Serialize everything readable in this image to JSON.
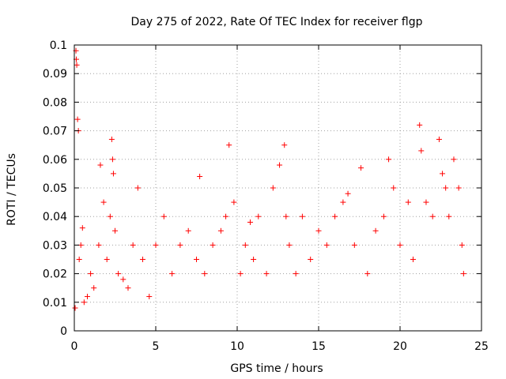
{
  "chart_data": {
    "type": "scatter",
    "title": "Day 275 of 2022, Rate Of TEC Index for receiver flgp",
    "xlabel": "GPS time / hours",
    "ylabel": "ROTI / TECUs",
    "xlim": [
      0,
      25
    ],
    "ylim": [
      0,
      0.1
    ],
    "xticks": [
      0,
      5,
      10,
      15,
      20,
      25
    ],
    "xtick_labels": [
      "0",
      "5",
      "10",
      "15",
      "20",
      "25"
    ],
    "yticks": [
      0,
      0.01,
      0.02,
      0.03,
      0.04,
      0.05,
      0.06,
      0.07,
      0.08,
      0.09,
      0.1
    ],
    "ytick_labels": [
      "0",
      "0.01",
      "0.02",
      "0.03",
      "0.04",
      "0.05",
      "0.06",
      "0.07",
      "0.08",
      "0.09",
      "0.1"
    ],
    "grid": true,
    "marker": "+",
    "color": "#ff0000",
    "series": [
      {
        "name": "ROTI",
        "x": [
          0.05,
          0.1,
          0.12,
          0.15,
          0.2,
          0.25,
          0.3,
          0.4,
          0.5,
          0.6,
          0.8,
          1.0,
          1.2,
          1.5,
          1.6,
          1.8,
          2.0,
          2.2,
          2.3,
          2.35,
          2.4,
          2.5,
          2.7,
          3.0,
          3.3,
          3.6,
          3.9,
          4.2,
          4.6,
          5.0,
          5.5,
          6.0,
          6.5,
          7.0,
          7.5,
          7.7,
          8.0,
          8.5,
          9.0,
          9.3,
          9.5,
          9.8,
          10.2,
          10.5,
          10.8,
          11.0,
          11.3,
          11.8,
          12.2,
          12.6,
          12.9,
          13.0,
          13.2,
          13.6,
          14.0,
          14.5,
          15.0,
          15.5,
          16.0,
          16.5,
          16.8,
          17.2,
          17.6,
          18.0,
          18.5,
          19.0,
          19.3,
          19.6,
          20.0,
          20.5,
          20.8,
          21.2,
          21.3,
          21.6,
          22.0,
          22.4,
          22.6,
          22.8,
          23.0,
          23.3,
          23.6,
          23.8,
          23.9
        ],
        "y": [
          0.008,
          0.098,
          0.095,
          0.093,
          0.074,
          0.07,
          0.025,
          0.03,
          0.036,
          0.01,
          0.012,
          0.02,
          0.015,
          0.03,
          0.058,
          0.045,
          0.025,
          0.04,
          0.067,
          0.06,
          0.055,
          0.035,
          0.02,
          0.018,
          0.015,
          0.03,
          0.05,
          0.025,
          0.012,
          0.03,
          0.04,
          0.02,
          0.03,
          0.035,
          0.025,
          0.054,
          0.02,
          0.03,
          0.035,
          0.04,
          0.065,
          0.045,
          0.02,
          0.03,
          0.038,
          0.025,
          0.04,
          0.02,
          0.05,
          0.058,
          0.065,
          0.04,
          0.03,
          0.02,
          0.04,
          0.025,
          0.035,
          0.03,
          0.04,
          0.045,
          0.048,
          0.03,
          0.057,
          0.02,
          0.035,
          0.04,
          0.06,
          0.05,
          0.03,
          0.045,
          0.025,
          0.072,
          0.063,
          0.045,
          0.04,
          0.067,
          0.055,
          0.05,
          0.04,
          0.06,
          0.05,
          0.03,
          0.02
        ]
      }
    ]
  }
}
